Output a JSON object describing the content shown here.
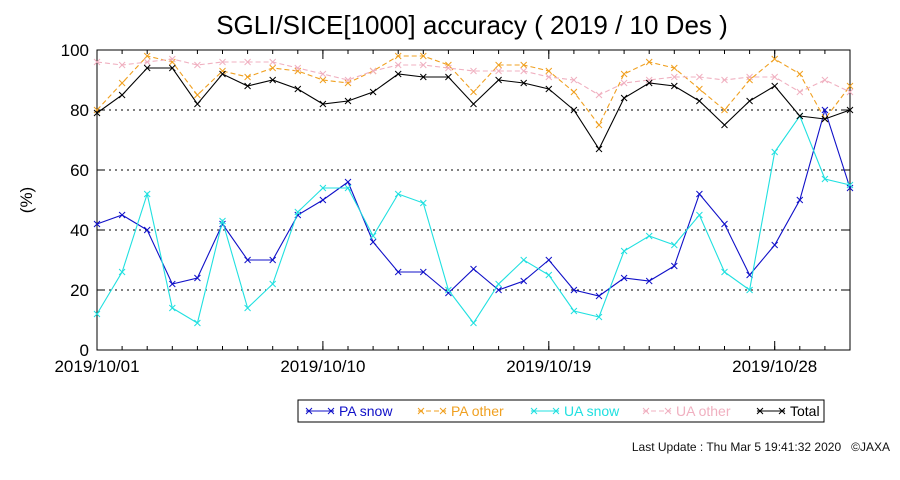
{
  "chart_data": {
    "type": "line",
    "title": "SGLI/SICE[1000] accuracy ( 2019 / 10 Des )",
    "ylabel": "(%)",
    "xlabel": "",
    "ylim": [
      0,
      100
    ],
    "yticks": [
      0,
      20,
      40,
      60,
      80,
      100
    ],
    "xticks": [
      {
        "label": "2019/10/01",
        "day": 1
      },
      {
        "label": "2019/10/10",
        "day": 10
      },
      {
        "label": "2019/10/19",
        "day": 19
      },
      {
        "label": "2019/10/28",
        "day": 28
      }
    ],
    "xlim": [
      1,
      31
    ],
    "grid": "horizontal dotted at 20, 40, 60, 80",
    "legend_position": "bottom",
    "x": [
      1,
      2,
      3,
      4,
      5,
      6,
      7,
      8,
      9,
      10,
      11,
      12,
      13,
      14,
      15,
      16,
      17,
      18,
      19,
      20,
      21,
      22,
      23,
      24,
      25,
      26,
      27,
      28,
      29,
      30,
      31
    ],
    "series": [
      {
        "name": "PA snow",
        "color": "#1010c8",
        "dash": "solid",
        "values": [
          42,
          45,
          40,
          22,
          24,
          42,
          30,
          30,
          45,
          50,
          56,
          36,
          26,
          26,
          19,
          27,
          20,
          23,
          30,
          20,
          18,
          24,
          23,
          28,
          52,
          42,
          25,
          35,
          50,
          80,
          54
        ]
      },
      {
        "name": "PA other",
        "color": "#f0a020",
        "dash": "dashed",
        "values": [
          80,
          89,
          98,
          96,
          85,
          93,
          91,
          94,
          93,
          90,
          89,
          93,
          98,
          98,
          95,
          86,
          95,
          95,
          93,
          86,
          75,
          92,
          96,
          94,
          87,
          80,
          90,
          97,
          92,
          77,
          88
        ]
      },
      {
        "name": "UA snow",
        "color": "#20e0e0",
        "dash": "solid",
        "values": [
          12,
          26,
          52,
          14,
          9,
          43,
          14,
          22,
          46,
          54,
          54,
          38,
          52,
          49,
          20,
          9,
          22,
          30,
          25,
          13,
          11,
          33,
          38,
          35,
          45,
          26,
          20,
          66,
          78,
          57,
          55
        ]
      },
      {
        "name": "UA other",
        "color": "#f0b0c0",
        "dash": "dashed",
        "values": [
          96,
          95,
          96,
          97,
          95,
          96,
          96,
          96,
          94,
          92,
          90,
          93,
          95,
          95,
          94,
          93,
          93,
          93,
          91,
          90,
          85,
          89,
          90,
          91,
          91,
          90,
          91,
          91,
          86,
          90,
          86
        ]
      },
      {
        "name": "Total",
        "color": "#000000",
        "dash": "solid",
        "values": [
          79,
          85,
          94,
          94,
          82,
          92,
          88,
          90,
          87,
          82,
          83,
          86,
          92,
          91,
          91,
          82,
          90,
          89,
          87,
          80,
          67,
          84,
          89,
          88,
          83,
          75,
          83,
          88,
          78,
          77,
          80
        ]
      }
    ]
  },
  "footer": {
    "last_update": "Last Update : Thu Mar  5 19:41:32 2020",
    "copyright": "©JAXA"
  }
}
